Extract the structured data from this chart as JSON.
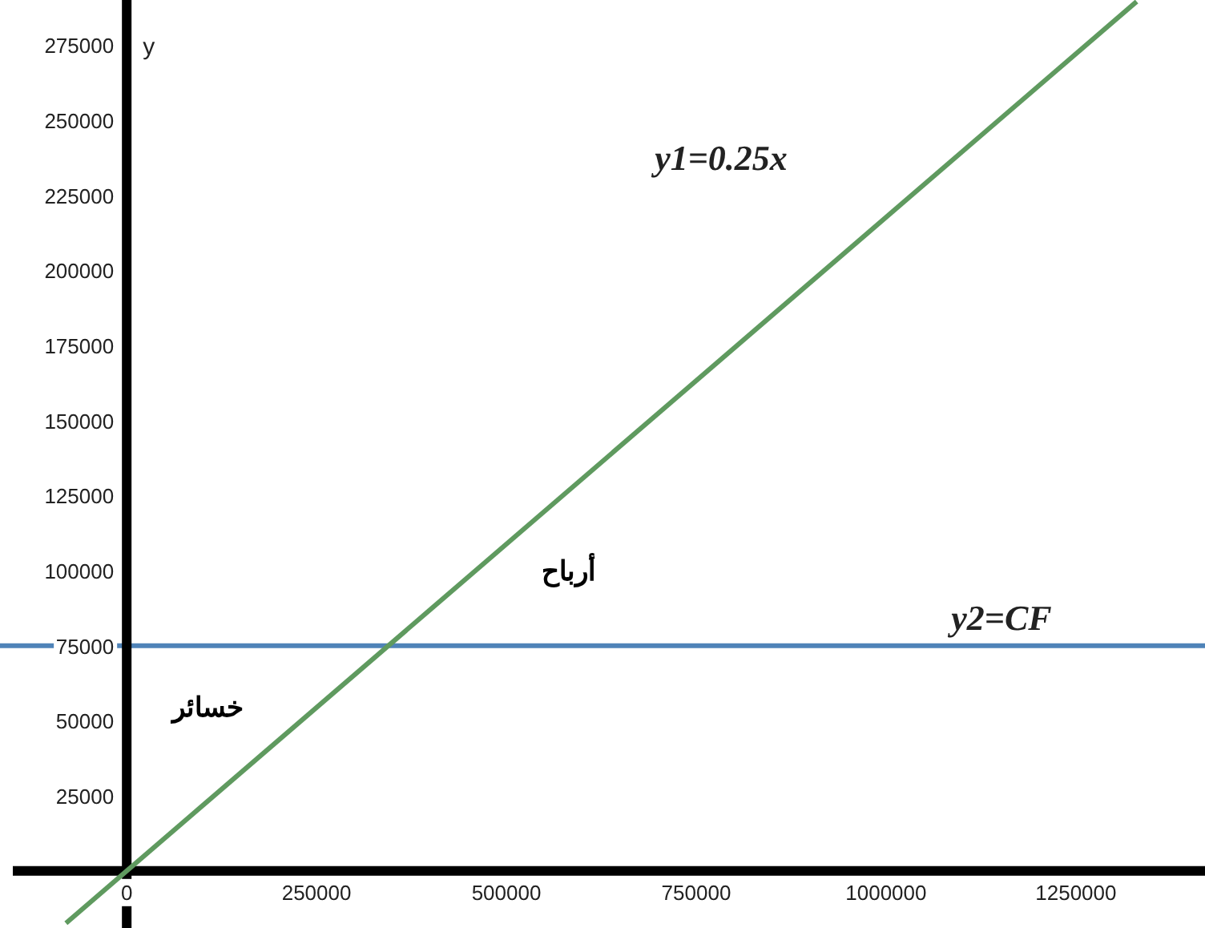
{
  "chart_data": {
    "type": "line",
    "ylabel": "y",
    "xlim": [
      -150000,
      1420000
    ],
    "ylim": [
      -19000,
      290000
    ],
    "xticks": [
      0,
      250000,
      500000,
      750000,
      1000000,
      1250000
    ],
    "yticks": [
      25000,
      50000,
      75000,
      100000,
      125000,
      150000,
      175000,
      200000,
      225000,
      250000,
      275000
    ],
    "series": [
      {
        "name": "y1=0.25x",
        "color": "#5f9a5f",
        "x": [
          -80000,
          1330000
        ],
        "values": [
          -17400,
          289500
        ]
      }
    ],
    "ref_lines": [
      {
        "axis": "y",
        "value": 75000,
        "label": "y2=CF",
        "color": "#4f83b8"
      }
    ],
    "annotations": [
      "أرباح",
      "خسائر"
    ],
    "grid": false,
    "marker": "none",
    "line_style": "solid"
  }
}
